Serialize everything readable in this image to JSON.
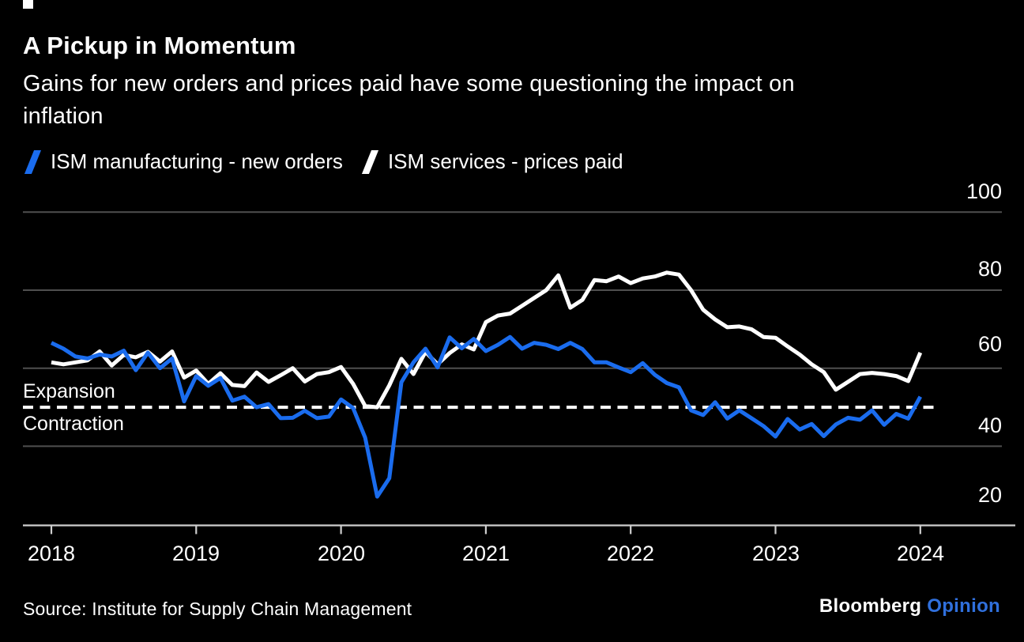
{
  "header": {
    "title": "A Pickup in Momentum",
    "subtitle_line1": "Gains for new orders and prices paid have some questioning the impact on",
    "subtitle_line2": "inflation"
  },
  "legend": {
    "items": [
      {
        "label": "ISM manufacturing - new orders",
        "color": "#1a6cee"
      },
      {
        "label": "ISM services - prices paid",
        "color": "#ffffff"
      }
    ]
  },
  "annotations": {
    "above_line": "Expansion",
    "below_line": "Contraction"
  },
  "footer": {
    "source": "Source: Institute for Supply Chain Management",
    "brand": "Bloomberg",
    "brand_suffix": "Opinion",
    "brand_suffix_color": "#3070dd"
  },
  "colors": {
    "background": "#000000",
    "gridline": "#4f4f4f",
    "axis": "#cfcfcf",
    "reference": "#ffffff",
    "accent_blue": "#1a6cee"
  },
  "chart_data": {
    "type": "line",
    "title": "A Pickup in Momentum",
    "subtitle": "Gains for new orders and prices paid have some questioning the impact on inflation",
    "x_unit": "month",
    "x_start": "2018-01",
    "x_end": "2024-01",
    "x_tick_labels": [
      "2018",
      "2019",
      "2020",
      "2021",
      "2022",
      "2023",
      "2024"
    ],
    "y_ticks": [
      100,
      80,
      60,
      40,
      20
    ],
    "y_tick_labels": [
      "100",
      "80",
      "60",
      "40",
      "20"
    ],
    "ylim": [
      20,
      100
    ],
    "grid_values": [
      100,
      80,
      60,
      40
    ],
    "grid_on": true,
    "legend_position": "top-left",
    "reference_line": {
      "value": 50,
      "style": "dashed",
      "color": "#ffffff",
      "label_above": "Expansion",
      "label_below": "Contraction"
    },
    "series": [
      {
        "name": "ISM services - prices paid",
        "color": "#ffffff",
        "values": [
          61.5,
          61.0,
          61.5,
          62.0,
          64.3,
          60.7,
          63.4,
          62.8,
          64.2,
          61.7,
          64.3,
          57.6,
          59.4,
          56.0,
          58.7,
          55.7,
          55.4,
          58.9,
          56.5,
          58.2,
          60.0,
          56.6,
          58.5,
          59.0,
          60.3,
          56.0,
          50.3,
          50.0,
          55.6,
          62.4,
          58.5,
          64.2,
          61.0,
          63.9,
          66.1,
          64.8,
          71.8,
          73.5,
          74.0,
          76.0,
          78.0,
          80.0,
          83.8,
          75.5,
          77.5,
          82.6,
          82.3,
          83.5,
          81.8,
          83.0,
          83.5,
          84.5,
          84.0,
          80.0,
          75.0,
          72.5,
          70.5,
          70.7,
          70.0,
          68.0,
          67.8,
          65.6,
          63.5,
          61.0,
          59.0,
          54.5,
          56.5,
          58.5,
          58.8,
          58.5,
          58.0,
          56.7,
          64.0
        ]
      },
      {
        "name": "ISM manufacturing - new orders",
        "color": "#1a6cee",
        "values": [
          66.5,
          65.0,
          63.0,
          62.5,
          63.5,
          63.0,
          64.5,
          59.5,
          64.0,
          60.0,
          62.5,
          51.5,
          58.0,
          55.5,
          57.5,
          51.7,
          52.7,
          50.0,
          50.8,
          47.2,
          47.3,
          49.1,
          47.2,
          47.6,
          52.0,
          49.8,
          42.2,
          27.1,
          31.8,
          56.4,
          61.5,
          65.0,
          60.2,
          67.9,
          65.1,
          67.5,
          64.4,
          66.0,
          68.0,
          65.0,
          66.5,
          66.0,
          64.9,
          66.5,
          64.9,
          61.5,
          61.5,
          60.2,
          59.0,
          61.3,
          58.3,
          56.2,
          55.1,
          49.2,
          48.0,
          51.3,
          47.1,
          49.2,
          47.2,
          45.2,
          42.5,
          47.0,
          44.3,
          45.7,
          42.6,
          45.6,
          47.3,
          46.8,
          49.2,
          45.5,
          48.3,
          47.1,
          52.7
        ]
      }
    ]
  }
}
